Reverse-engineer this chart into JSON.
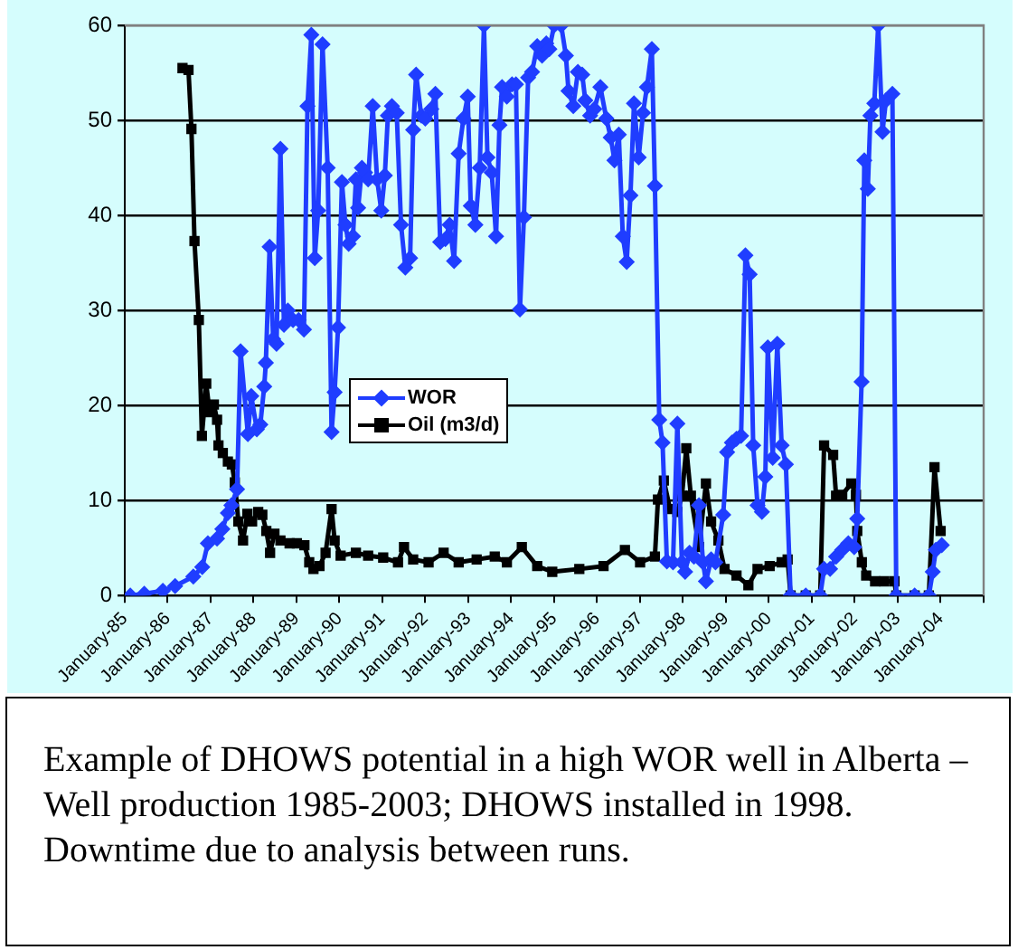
{
  "chart_data": {
    "type": "line",
    "xlim": [
      "1985-01-01",
      "2005-01-01"
    ],
    "ylim": [
      0,
      60
    ],
    "yticks": [
      0,
      10,
      20,
      30,
      40,
      50,
      60
    ],
    "xticks": [
      {
        "value": "1985-01-01",
        "label": "January-85"
      },
      {
        "value": "1986-01-01",
        "label": "January-86"
      },
      {
        "value": "1987-01-01",
        "label": "January-87"
      },
      {
        "value": "1988-01-01",
        "label": "January-88"
      },
      {
        "value": "1989-01-01",
        "label": "January-89"
      },
      {
        "value": "1990-01-01",
        "label": "January-90"
      },
      {
        "value": "1991-01-01",
        "label": "January-91"
      },
      {
        "value": "1992-01-01",
        "label": "January-92"
      },
      {
        "value": "1993-01-01",
        "label": "January-93"
      },
      {
        "value": "1994-01-01",
        "label": "January-94"
      },
      {
        "value": "1995-01-01",
        "label": "January-95"
      },
      {
        "value": "1996-01-01",
        "label": "January-96"
      },
      {
        "value": "1997-01-01",
        "label": "January-97"
      },
      {
        "value": "1998-01-01",
        "label": "January-98"
      },
      {
        "value": "1999-01-01",
        "label": "January-99"
      },
      {
        "value": "2000-01-01",
        "label": "January-00"
      },
      {
        "value": "2001-01-01",
        "label": "January-01"
      },
      {
        "value": "2002-01-01",
        "label": "January-02"
      },
      {
        "value": "2003-01-01",
        "label": "January-03"
      },
      {
        "value": "2004-01-01",
        "label": "January-04"
      },
      {
        "value": "2005-01-01",
        "label": null
      }
    ],
    "grid": "y",
    "legend": "center",
    "line_style": "solid",
    "series": [
      {
        "name": "WOR",
        "color": "#1f3dff",
        "marker": "diamond",
        "x": [
          "1985-02-17",
          "1985-06-16",
          "1985-11-21",
          "1986-03-05",
          "1986-08-07",
          "1986-10-22",
          "1986-12-09",
          "1987-02-25",
          "1987-04-11",
          "1987-05-28",
          "1987-06-27",
          "1987-08-14",
          "1987-09-13",
          "1987-11-14",
          "1987-12-13",
          "1988-01-29",
          "1988-02-28",
          "1988-04-01",
          "1988-04-15",
          "1988-05-17",
          "1988-06-16",
          "1988-07-15",
          "1988-08-17",
          "1988-09-16",
          "1988-10-19",
          "1988-12-02",
          "1989-01-19",
          "1989-03-05",
          "1989-04-04",
          "1989-05-07",
          "1989-06-05",
          "1989-07-04",
          "1989-08-10",
          "1989-09-23",
          "1989-10-26",
          "1989-11-21",
          "1989-12-20",
          "1990-01-22",
          "1990-02-21",
          "1990-03-20",
          "1990-04-26",
          "1990-05-21",
          "1990-06-09",
          "1990-07-11",
          "1990-08-07",
          "1990-09-02",
          "1990-10-11",
          "1990-11-17",
          "1990-12-23",
          "1991-01-22",
          "1991-02-17",
          "1991-03-23",
          "1991-05-03",
          "1991-06-09",
          "1991-07-15",
          "1991-08-25",
          "1991-09-20",
          "1991-10-15",
          "1991-11-28",
          "1992-01-01",
          "1992-02-21",
          "1992-03-27",
          "1992-05-07",
          "1992-06-20",
          "1992-07-26",
          "1992-09-02",
          "1992-10-11",
          "1992-11-21",
          "1992-12-27",
          "1993-01-22",
          "1993-03-02",
          "1993-04-08",
          "1993-05-14",
          "1993-06-13",
          "1993-07-19",
          "1993-08-25",
          "1993-09-23",
          "1993-10-15",
          "1993-11-25",
          "1994-01-08",
          "1994-02-10",
          "1994-03-16",
          "1994-04-19",
          "1994-05-25",
          "1994-06-27",
          "1994-08-10",
          "1994-09-20",
          "1994-10-26",
          "1994-11-21",
          "1995-01-01",
          "1995-03-02",
          "1995-04-11",
          "1995-05-03",
          "1995-06-13",
          "1995-07-22",
          "1995-08-28",
          "1995-09-23",
          "1995-11-03",
          "1995-12-09",
          "1996-01-29",
          "1996-03-20",
          "1996-04-26",
          "1996-05-28",
          "1996-07-04",
          "1996-08-07",
          "1996-09-09",
          "1996-10-11",
          "1996-11-10",
          "1996-12-20",
          "1997-01-26",
          "1997-02-28",
          "1997-04-11",
          "1997-05-07",
          "1997-06-13",
          "1997-07-11",
          "1997-08-17",
          "1997-10-08",
          "1997-11-14",
          "1997-12-23",
          "1998-01-19",
          "1998-02-25",
          "1998-04-04",
          "1998-05-17",
          "1998-06-20",
          "1998-07-15",
          "1998-08-28",
          "1998-10-04",
          "1998-12-09",
          "1999-01-11",
          "1999-02-21",
          "1999-04-01",
          "1999-05-10",
          "1999-06-16",
          "1999-07-22",
          "1999-08-21",
          "1999-09-27",
          "1999-11-03",
          "1999-12-02",
          "1999-12-23",
          "2000-02-03",
          "2000-03-13",
          "2000-04-19",
          "2000-05-25",
          "2000-07-04",
          "2000-11-10",
          "2001-03-13",
          "2001-04-15",
          "2001-06-05",
          "2001-07-26",
          "2001-09-16",
          "2001-11-07",
          "2001-12-27",
          "2002-01-22",
          "2002-02-28",
          "2002-03-23",
          "2002-04-22",
          "2002-05-14",
          "2002-06-16",
          "2002-07-19",
          "2002-08-25",
          "2002-09-23",
          "2002-11-17",
          "2002-12-20",
          "2003-05-25",
          "2003-09-23",
          "2003-10-26",
          "2003-11-21",
          "2004-01-11"
        ],
        "values": [
          0,
          0.2,
          0.5,
          1,
          2,
          3,
          5.5,
          6,
          7,
          8.7,
          9.5,
          11.2,
          25.7,
          17,
          21,
          17.5,
          18,
          22,
          24.5,
          36.7,
          27,
          26.5,
          47,
          28.5,
          30,
          29,
          29,
          28,
          51.5,
          59,
          35.5,
          40.5,
          58,
          45,
          17.2,
          21.4,
          28.2,
          43.5,
          39,
          37,
          37.8,
          43.8,
          40.8,
          45,
          44.5,
          43.8,
          51.5,
          43.8,
          40.5,
          44.2,
          50.5,
          51.5,
          50.8,
          39,
          34.5,
          35.5,
          49,
          54.8,
          50.5,
          50.2,
          51.2,
          52.8,
          37.2,
          37.5,
          39,
          35.2,
          46.5,
          50.2,
          52.5,
          41,
          39,
          45,
          60,
          46.1,
          44.5,
          37.8,
          49.5,
          53.5,
          52.5,
          53.8,
          53.8,
          30.1,
          39.8,
          54.5,
          55.1,
          57.8,
          56.8,
          58.1,
          57.5,
          60,
          60,
          56.8,
          53.1,
          51.5,
          55.1,
          54.8,
          52.1,
          50.5,
          51.2,
          53.5,
          50.2,
          48.2,
          45.8,
          48.5,
          37.8,
          35.1,
          42.1,
          51.8,
          46.1,
          50.8,
          53.5,
          57.5,
          43.1,
          18.5,
          16.1,
          3.6,
          3.5,
          18.1,
          3.5,
          2.5,
          4.5,
          4.1,
          9.5,
          3.5,
          1.5,
          3.8,
          3.5,
          8.5,
          15.1,
          16.1,
          16.5,
          16.8,
          35.8,
          33.8,
          15.8,
          9.5,
          8.8,
          12.5,
          26.1,
          14.5,
          26.5,
          15.8,
          13.8,
          0,
          0,
          0,
          2.8,
          2.8,
          4.1,
          4.8,
          5.5,
          5.1,
          8.1,
          22.5,
          45.8,
          42.8,
          50.5,
          51.8,
          60,
          48.8,
          52.1,
          52.8,
          0,
          0,
          0,
          2.5,
          4.8,
          5.3
        ]
      },
      {
        "name": "Oil (m3/d)",
        "color": "#000000",
        "marker": "square",
        "x": [
          "1986-05-07",
          "1986-06-27",
          "1986-07-22",
          "1986-08-17",
          "1986-09-23",
          "1986-10-19",
          "1986-11-25",
          "1986-12-23",
          "1987-01-29",
          "1987-02-25",
          "1987-03-09",
          "1987-04-15",
          "1987-05-28",
          "1987-07-01",
          "1987-07-26",
          "1987-08-25",
          "1987-10-04",
          "1987-11-10",
          "1987-12-20",
          "1988-02-10",
          "1988-03-16",
          "1988-04-19",
          "1988-05-21",
          "1988-06-27",
          "1988-08-17",
          "1988-11-03",
          "1989-01-04",
          "1989-03-09",
          "1989-04-19",
          "1989-05-25",
          "1989-07-15",
          "1989-09-05",
          "1989-10-26",
          "1989-11-21",
          "1990-01-11",
          "1990-05-21",
          "1990-09-02",
          "1991-01-08",
          "1991-05-14",
          "1991-07-04",
          "1991-09-20",
          "1992-01-29",
          "1992-06-05",
          "1992-10-11",
          "1993-03-13",
          "1993-08-14",
          "1993-11-25",
          "1994-04-01",
          "1994-08-10",
          "1994-12-16",
          "1995-08-03",
          "1996-02-25",
          "1996-08-25",
          "1997-01-01",
          "1997-05-07",
          "1997-06-02",
          "1997-07-22",
          "1997-09-13",
          "1997-11-14",
          "1997-12-23",
          "1998-01-29",
          "1998-03-09",
          "1998-05-17",
          "1998-07-15",
          "1998-08-28",
          "1998-10-29",
          "1998-12-20",
          "1999-04-01",
          "1999-07-11",
          "1999-09-27",
          "2000-01-08",
          "2000-04-19",
          "2000-06-09",
          "2000-07-04",
          "2000-11-10",
          "2001-03-13",
          "2001-04-15",
          "2001-07-01",
          "2001-07-26",
          "2001-09-16",
          "2001-12-02",
          "2002-01-11",
          "2002-01-22",
          "2002-03-02",
          "2002-04-08",
          "2002-06-23",
          "2002-09-09",
          "2002-12-05",
          "2002-12-20",
          "2003-05-25",
          "2003-09-23",
          "2003-11-10",
          "2004-01-01"
        ],
        "values": [
          55.5,
          55.3,
          49.1,
          37.3,
          29,
          16.8,
          22.3,
          19.3,
          20.1,
          18.5,
          15.8,
          15,
          14.1,
          13.8,
          11.9,
          7.8,
          5.8,
          8.6,
          7.8,
          8.8,
          8.5,
          6.8,
          4.5,
          6.5,
          5.8,
          5.5,
          5.5,
          5.3,
          3.5,
          2.8,
          3.1,
          4.5,
          9.1,
          5.8,
          4.2,
          4.5,
          4.2,
          4,
          3.5,
          5.1,
          3.8,
          3.5,
          4.5,
          3.5,
          3.8,
          4.1,
          3.5,
          5.1,
          3.1,
          2.5,
          2.8,
          3.1,
          4.8,
          3.5,
          4.1,
          10.1,
          12.1,
          9.1,
          8.8,
          10.5,
          15.5,
          10.5,
          5.1,
          11.8,
          7.8,
          5.8,
          2.8,
          2.1,
          1.1,
          2.8,
          3.1,
          3.5,
          3.8,
          0,
          0,
          0,
          15.8,
          14.8,
          10.5,
          10.6,
          11.8,
          10.6,
          6.8,
          3.5,
          2.1,
          1.5,
          1.5,
          1.5,
          0,
          0,
          0,
          13.5,
          6.8
        ]
      }
    ],
    "annotations": [
      "Example of DHOWS potential in a high WOR well in Alberta – Well production 1985-2003; DHOWS installed in 1998.  Downtime due to analysis between runs."
    ]
  }
}
